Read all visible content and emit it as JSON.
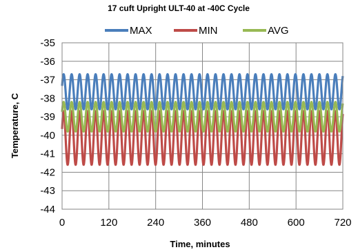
{
  "chart_data": {
    "type": "line",
    "title": "17 cuft Upright ULT-40 at -40C Cycle",
    "xlabel": "Time, minutes",
    "ylabel": "Temperature, C",
    "xlim": [
      0,
      720
    ],
    "ylim": [
      -44,
      -35
    ],
    "x_ticks": [
      "0",
      "120",
      "240",
      "360",
      "480",
      "600",
      "720"
    ],
    "y_ticks": [
      "-35",
      "-36",
      "-37",
      "-38",
      "-39",
      "-40",
      "-41",
      "-42",
      "-43",
      "-44"
    ],
    "grid": true,
    "legend_position": "top",
    "cycle_period_minutes": 20.5,
    "series": [
      {
        "name": "MAX",
        "color": "#4a7ebb",
        "low": -38.6,
        "high": -36.7
      },
      {
        "name": "MIN",
        "color": "#be4b48",
        "low": -41.6,
        "high": -38.7
      },
      {
        "name": "AVG",
        "color": "#98b954",
        "low": -39.8,
        "high": -38.2
      }
    ]
  }
}
